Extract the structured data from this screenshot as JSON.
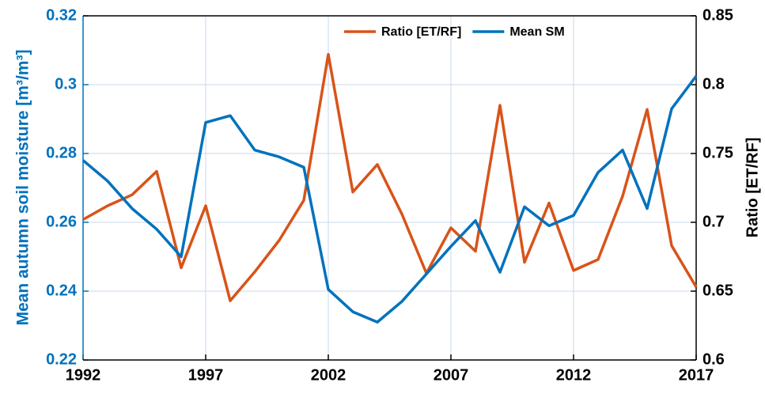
{
  "chart_data": {
    "type": "line",
    "x": [
      1992,
      1993,
      1994,
      1995,
      1996,
      1997,
      1998,
      1999,
      2000,
      2001,
      2002,
      2003,
      2004,
      2005,
      2006,
      2007,
      2008,
      2009,
      2010,
      2011,
      2012,
      2013,
      2014,
      2015,
      2016,
      2017
    ],
    "xlim": [
      1992,
      2017
    ],
    "xticks": [
      1992,
      1997,
      2002,
      2007,
      2012,
      2017
    ],
    "ylabel": "Mean autumn soil moisture [m³/m³]",
    "ylim": [
      0.22,
      0.32
    ],
    "yticks": [
      0.22,
      0.24,
      0.26,
      0.28,
      0.3,
      0.32
    ],
    "y2label": "Ratio [ET/RF]",
    "y2lim": [
      0.6,
      0.85
    ],
    "y2ticks": [
      0.6,
      0.65,
      0.7,
      0.75,
      0.8,
      0.85
    ],
    "grid": true,
    "legend": "upper right",
    "series": [
      {
        "name": "Ratio [ET/RF]",
        "color": "#d95319",
        "axis": "y2",
        "values": [
          0.702,
          0.712,
          0.72,
          0.737,
          0.667,
          0.712,
          0.643,
          0.664,
          0.687,
          0.716,
          0.822,
          0.722,
          0.742,
          0.706,
          0.663,
          0.696,
          0.679,
          0.785,
          0.671,
          0.714,
          0.665,
          0.673,
          0.719,
          0.782,
          0.683,
          0.653
        ]
      },
      {
        "name": "Mean SM",
        "color": "#0072bd",
        "axis": "y",
        "values": [
          0.278,
          0.272,
          0.264,
          0.258,
          0.25,
          0.289,
          0.291,
          0.281,
          0.279,
          0.276,
          0.2405,
          0.234,
          0.231,
          0.237,
          0.245,
          0.253,
          0.2605,
          0.2455,
          0.2645,
          0.259,
          0.262,
          0.2745,
          0.281,
          0.264,
          0.293,
          0.3025
        ]
      }
    ]
  }
}
